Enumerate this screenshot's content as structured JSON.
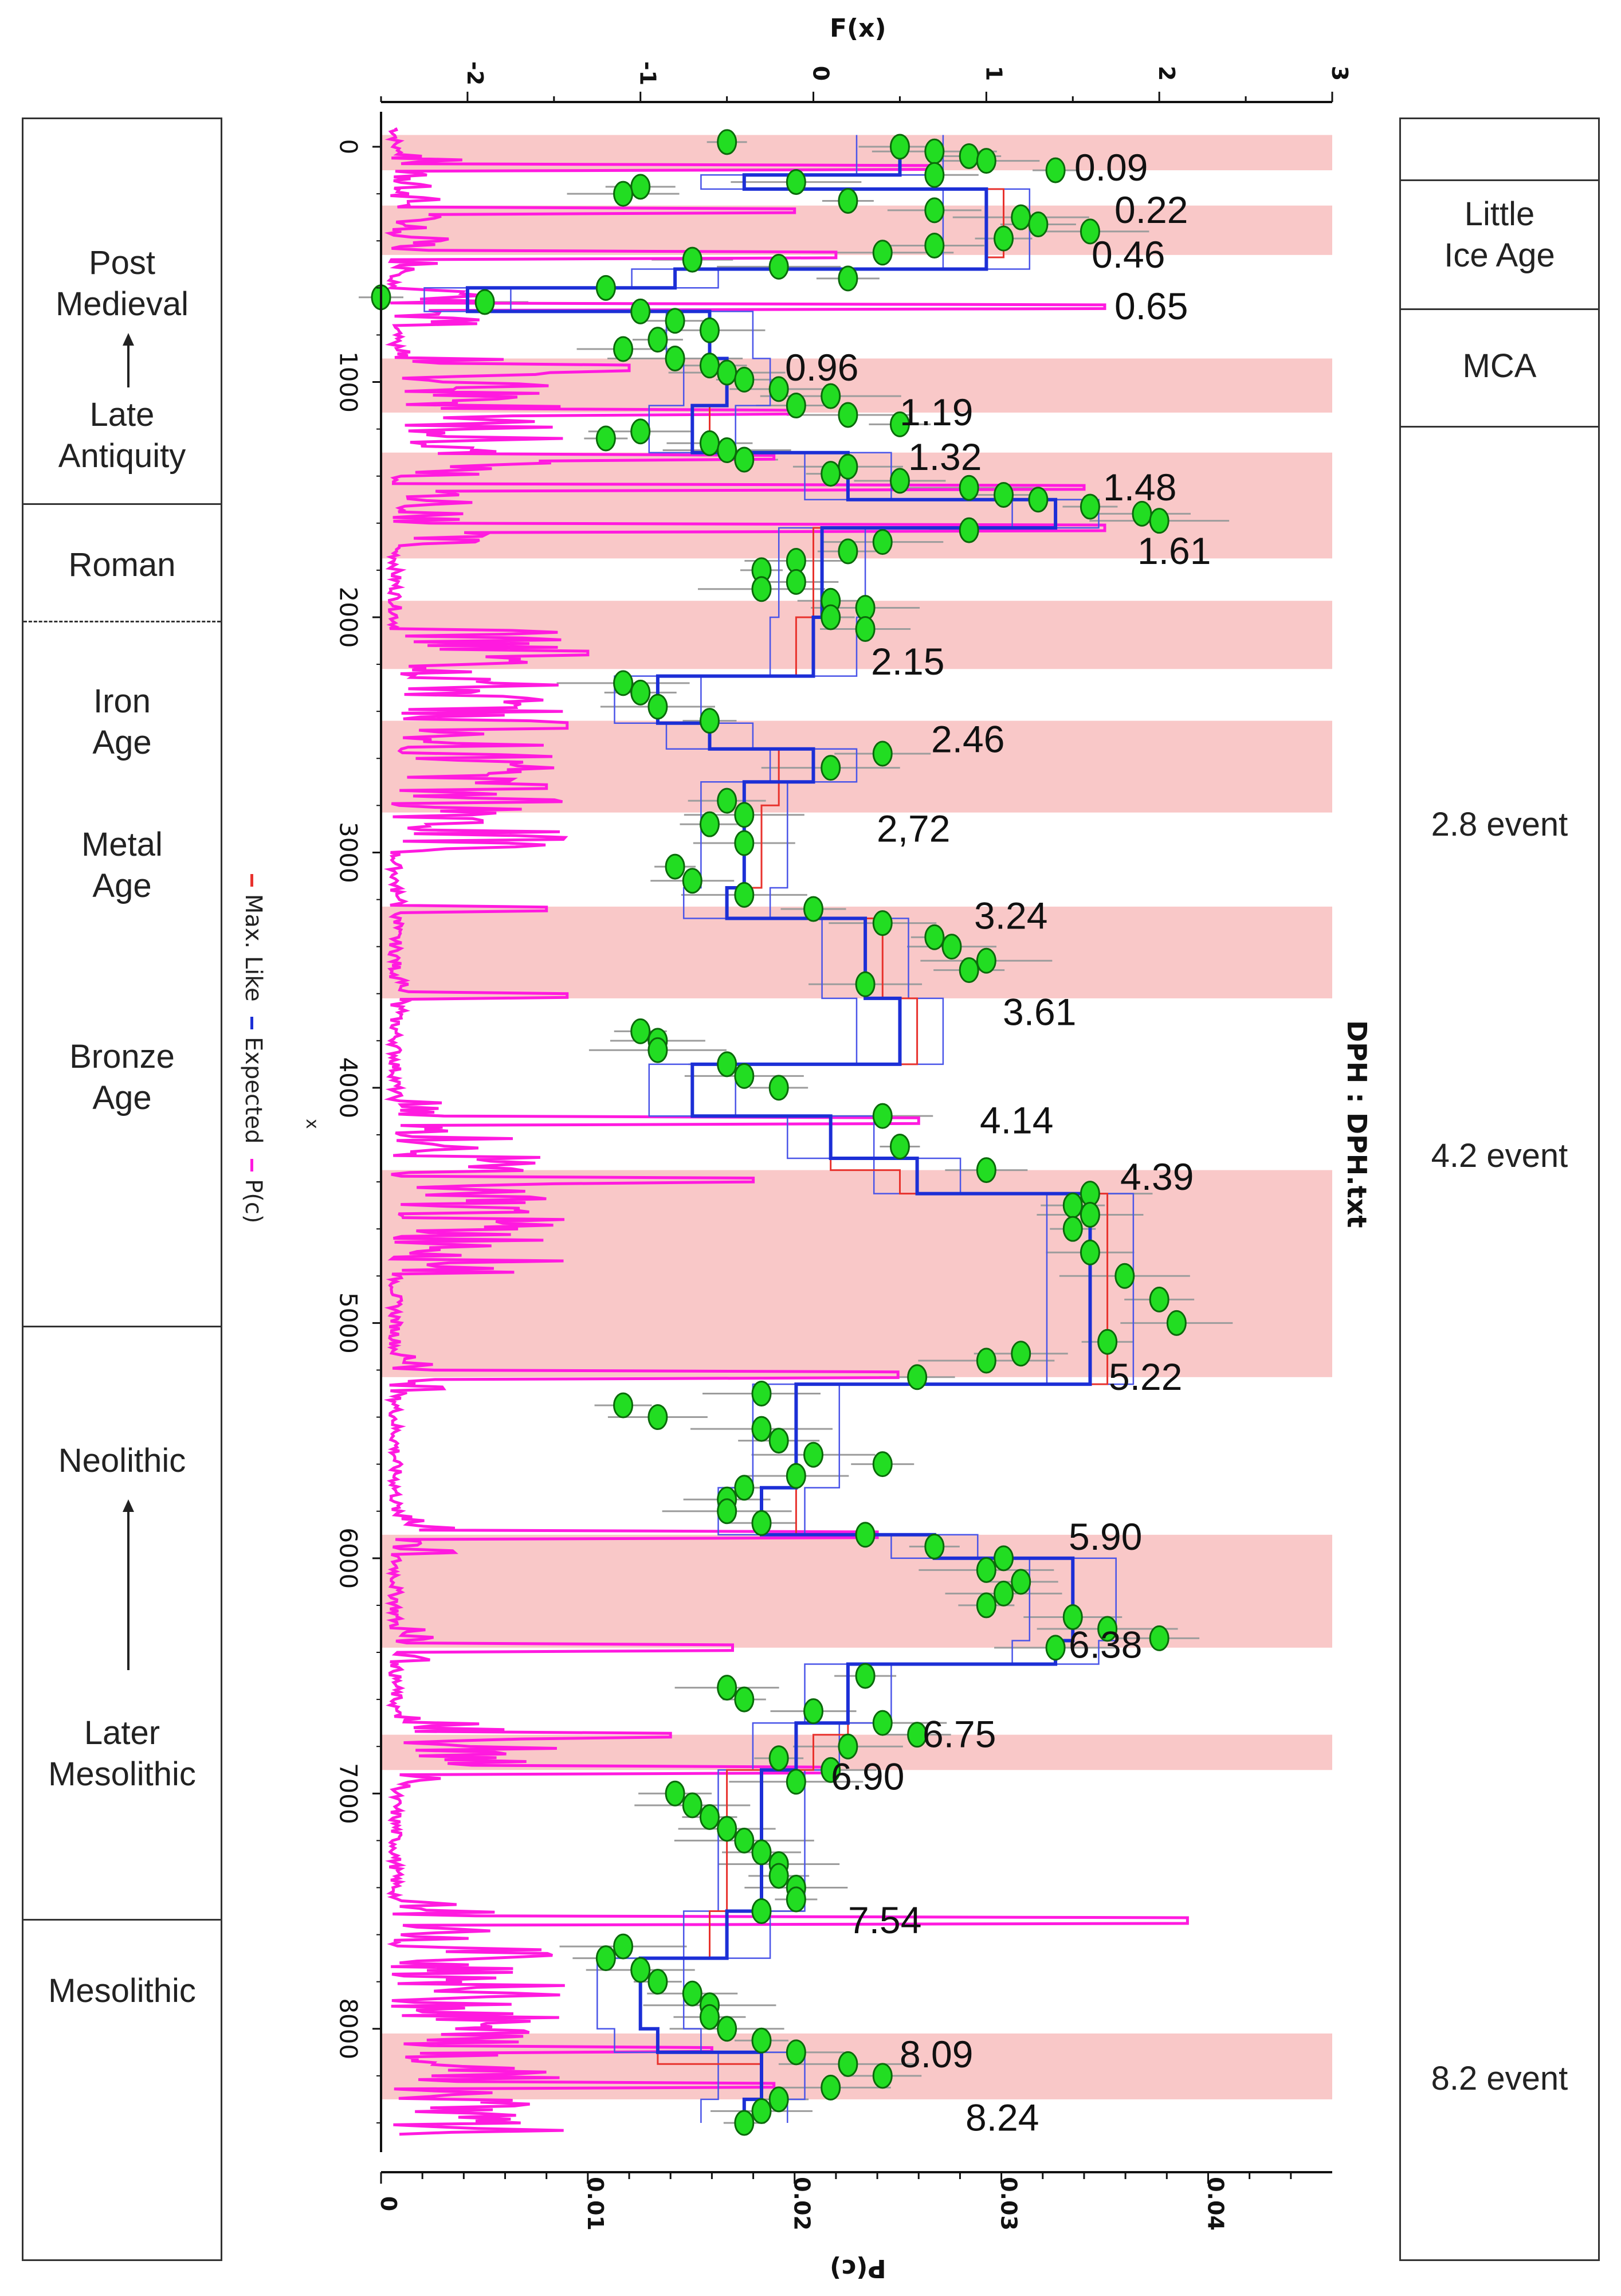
{
  "chart_data": {
    "type": "line",
    "title": "DPH : DPH.txt",
    "top_axis": {
      "label": "F(x)",
      "range": [
        -2.5,
        3
      ],
      "ticks": [
        "-2",
        "-1",
        "0",
        "1",
        "2",
        "3"
      ]
    },
    "bottom_axis": {
      "label": "P(c)",
      "range": [
        0,
        0.046
      ],
      "ticks": [
        "0",
        "0.01",
        "0.02",
        "0.03",
        "0.04"
      ]
    },
    "depth_axis": {
      "label": "x",
      "range": [
        -100,
        8500
      ],
      "ticks": [
        "0",
        "1000",
        "2000",
        "3000",
        "4000",
        "5000",
        "6000",
        "7000",
        "8000"
      ]
    },
    "legend": [
      {
        "name": "Max. Like",
        "color": "#e8322d"
      },
      {
        "name": "Expected",
        "color": "#1c2fd6"
      },
      {
        "name": "P(c)",
        "color": "#ff1adf"
      }
    ],
    "shaded_bands": [
      {
        "start": -50,
        "end": 100
      },
      {
        "start": 250,
        "end": 460
      },
      {
        "start": 900,
        "end": 1130
      },
      {
        "start": 1300,
        "end": 1750
      },
      {
        "start": 1930,
        "end": 2220
      },
      {
        "start": 2440,
        "end": 2830
      },
      {
        "start": 3230,
        "end": 3620
      },
      {
        "start": 4350,
        "end": 5230
      },
      {
        "start": 5900,
        "end": 6380
      },
      {
        "start": 6750,
        "end": 6900
      },
      {
        "start": 8020,
        "end": 8300
      }
    ],
    "breakpoints": [
      {
        "label": "0.09",
        "depth": 90
      },
      {
        "label": "0.22",
        "depth": 270
      },
      {
        "label": "0.46",
        "depth": 460
      },
      {
        "label": "0.65",
        "depth": 680
      },
      {
        "label": "0.96",
        "depth": 940
      },
      {
        "label": "1.19",
        "depth": 1130
      },
      {
        "label": "1.32",
        "depth": 1320
      },
      {
        "label": "1.48",
        "depth": 1450
      },
      {
        "label": "1.61",
        "depth": 1720
      },
      {
        "label": "2.15",
        "depth": 2190
      },
      {
        "label": "2.46",
        "depth": 2520
      },
      {
        "label": "2,72",
        "depth": 2900
      },
      {
        "label": "3.24",
        "depth": 3270
      },
      {
        "label": "3.61",
        "depth": 3680
      },
      {
        "label": "4.14",
        "depth": 4140
      },
      {
        "label": "4.39",
        "depth": 4380
      },
      {
        "label": "5.22",
        "depth": 5230
      },
      {
        "label": "5.90",
        "depth": 5910
      },
      {
        "label": "6.38",
        "depth": 6370
      },
      {
        "label": "6.75",
        "depth": 6750
      },
      {
        "label": "6.90",
        "depth": 6930
      },
      {
        "label": "7.54",
        "depth": 7540
      },
      {
        "label": "8.09",
        "depth": 8110
      },
      {
        "label": "8.24",
        "depth": 8380
      }
    ],
    "expected_steps": [
      [
        -50,
        0.5
      ],
      [
        120,
        -0.4
      ],
      [
        180,
        1.0
      ],
      [
        470,
        1.0
      ],
      [
        520,
        -0.8
      ],
      [
        600,
        -2.0
      ],
      [
        700,
        -0.6
      ],
      [
        900,
        -0.5
      ],
      [
        1100,
        -0.7
      ],
      [
        1300,
        0.2
      ],
      [
        1500,
        1.4
      ],
      [
        1620,
        0.05
      ],
      [
        2000,
        0.0
      ],
      [
        2250,
        -0.9
      ],
      [
        2450,
        -0.6
      ],
      [
        2560,
        0.0
      ],
      [
        2700,
        -0.4
      ],
      [
        3150,
        -0.5
      ],
      [
        3280,
        0.3
      ],
      [
        3620,
        0.5
      ],
      [
        3900,
        -0.7
      ],
      [
        4120,
        0.1
      ],
      [
        4300,
        0.6
      ],
      [
        4450,
        1.6
      ],
      [
        5200,
        1.6
      ],
      [
        5260,
        -0.1
      ],
      [
        5700,
        -0.3
      ],
      [
        5900,
        0.7
      ],
      [
        6000,
        1.5
      ],
      [
        6350,
        1.4
      ],
      [
        6450,
        0.2
      ],
      [
        6700,
        -0.1
      ],
      [
        6900,
        -0.3
      ],
      [
        7500,
        -0.5
      ],
      [
        7700,
        -1.0
      ],
      [
        8000,
        -0.9
      ],
      [
        8100,
        -0.3
      ],
      [
        8300,
        -0.4
      ]
    ],
    "maxlike_steps": [
      [
        -50,
        0.5
      ],
      [
        120,
        -0.4
      ],
      [
        180,
        1.1
      ],
      [
        470,
        1.0
      ],
      [
        520,
        -0.8
      ],
      [
        600,
        -1.9
      ],
      [
        700,
        -0.6
      ],
      [
        900,
        -0.5
      ],
      [
        1100,
        -0.6
      ],
      [
        1300,
        0.2
      ],
      [
        1500,
        1.4
      ],
      [
        1620,
        0.0
      ],
      [
        2000,
        -0.1
      ],
      [
        2250,
        -0.9
      ],
      [
        2450,
        -0.6
      ],
      [
        2560,
        -0.2
      ],
      [
        2800,
        -0.3
      ],
      [
        3150,
        -0.5
      ],
      [
        3280,
        0.4
      ],
      [
        3620,
        0.6
      ],
      [
        3900,
        -0.7
      ],
      [
        4120,
        0.1
      ],
      [
        4350,
        0.5
      ],
      [
        4450,
        1.7
      ],
      [
        5200,
        1.7
      ],
      [
        5260,
        -0.1
      ],
      [
        5900,
        0.7
      ],
      [
        6000,
        1.5
      ],
      [
        6350,
        1.4
      ],
      [
        6450,
        0.2
      ],
      [
        6750,
        0.0
      ],
      [
        6900,
        -0.5
      ],
      [
        7500,
        -0.6
      ],
      [
        7700,
        -1.0
      ],
      [
        8000,
        -0.9
      ],
      [
        8150,
        -0.3
      ],
      [
        8300,
        -0.3
      ]
    ],
    "pc_peaks": [
      {
        "depth": 90,
        "value": 0.027
      },
      {
        "depth": 270,
        "value": 0.02
      },
      {
        "depth": 460,
        "value": 0.022
      },
      {
        "depth": 680,
        "value": 0.035
      },
      {
        "depth": 940,
        "value": 0.012
      },
      {
        "depth": 1130,
        "value": 0.02
      },
      {
        "depth": 1320,
        "value": 0.019
      },
      {
        "depth": 1450,
        "value": 0.034
      },
      {
        "depth": 1620,
        "value": 0.035
      },
      {
        "depth": 2150,
        "value": 0.01
      },
      {
        "depth": 2460,
        "value": 0.009
      },
      {
        "depth": 2720,
        "value": 0.008
      },
      {
        "depth": 3240,
        "value": 0.008
      },
      {
        "depth": 3610,
        "value": 0.009
      },
      {
        "depth": 4140,
        "value": 0.026
      },
      {
        "depth": 4390,
        "value": 0.018
      },
      {
        "depth": 5220,
        "value": 0.025
      },
      {
        "depth": 5900,
        "value": 0.024
      },
      {
        "depth": 6380,
        "value": 0.017
      },
      {
        "depth": 6750,
        "value": 0.014
      },
      {
        "depth": 6900,
        "value": 0.022
      },
      {
        "depth": 7540,
        "value": 0.039
      },
      {
        "depth": 8090,
        "value": 0.016
      },
      {
        "depth": 8240,
        "value": 0.019
      }
    ],
    "data_points": [
      [
        -20,
        -0.5
      ],
      [
        0,
        0.5
      ],
      [
        20,
        0.7
      ],
      [
        40,
        0.9
      ],
      [
        60,
        1.0
      ],
      [
        100,
        1.4
      ],
      [
        120,
        0.7
      ],
      [
        150,
        -0.1
      ],
      [
        170,
        -1.0
      ],
      [
        200,
        -1.1
      ],
      [
        230,
        0.2
      ],
      [
        270,
        0.7
      ],
      [
        300,
        1.2
      ],
      [
        330,
        1.3
      ],
      [
        360,
        1.6
      ],
      [
        390,
        1.1
      ],
      [
        420,
        0.7
      ],
      [
        450,
        0.4
      ],
      [
        480,
        -0.7
      ],
      [
        510,
        -0.2
      ],
      [
        560,
        0.2
      ],
      [
        600,
        -1.2
      ],
      [
        640,
        -2.5
      ],
      [
        660,
        -1.9
      ],
      [
        700,
        -1.0
      ],
      [
        740,
        -0.8
      ],
      [
        780,
        -0.6
      ],
      [
        820,
        -0.9
      ],
      [
        860,
        -1.1
      ],
      [
        900,
        -0.8
      ],
      [
        930,
        -0.6
      ],
      [
        960,
        -0.5
      ],
      [
        990,
        -0.4
      ],
      [
        1030,
        -0.2
      ],
      [
        1060,
        0.1
      ],
      [
        1100,
        -0.1
      ],
      [
        1140,
        0.2
      ],
      [
        1180,
        0.5
      ],
      [
        1210,
        -1.0
      ],
      [
        1240,
        -1.2
      ],
      [
        1260,
        -0.6
      ],
      [
        1290,
        -0.5
      ],
      [
        1330,
        -0.4
      ],
      [
        1360,
        0.2
      ],
      [
        1390,
        0.1
      ],
      [
        1420,
        0.5
      ],
      [
        1450,
        0.9
      ],
      [
        1480,
        1.1
      ],
      [
        1500,
        1.3
      ],
      [
        1530,
        1.6
      ],
      [
        1560,
        1.9
      ],
      [
        1590,
        2.0
      ],
      [
        1630,
        0.9
      ],
      [
        1680,
        0.4
      ],
      [
        1720,
        0.2
      ],
      [
        1760,
        -0.1
      ],
      [
        1800,
        -0.3
      ],
      [
        1850,
        -0.1
      ],
      [
        1880,
        -0.3
      ],
      [
        1930,
        0.1
      ],
      [
        1960,
        0.3
      ],
      [
        2000,
        0.1
      ],
      [
        2050,
        0.3
      ],
      [
        2280,
        -1.1
      ],
      [
        2320,
        -1.0
      ],
      [
        2380,
        -0.9
      ],
      [
        2440,
        -0.6
      ],
      [
        2580,
        0.4
      ],
      [
        2640,
        0.1
      ],
      [
        2780,
        -0.5
      ],
      [
        2840,
        -0.4
      ],
      [
        2880,
        -0.6
      ],
      [
        2960,
        -0.4
      ],
      [
        3060,
        -0.8
      ],
      [
        3120,
        -0.7
      ],
      [
        3180,
        -0.4
      ],
      [
        3240,
        0.0
      ],
      [
        3300,
        0.4
      ],
      [
        3360,
        0.7
      ],
      [
        3400,
        0.8
      ],
      [
        3460,
        1.0
      ],
      [
        3500,
        0.9
      ],
      [
        3560,
        0.3
      ],
      [
        3760,
        -1.0
      ],
      [
        3800,
        -0.9
      ],
      [
        3840,
        -0.9
      ],
      [
        3900,
        -0.5
      ],
      [
        3950,
        -0.4
      ],
      [
        4000,
        -0.2
      ],
      [
        4120,
        0.4
      ],
      [
        4250,
        0.5
      ],
      [
        4350,
        1.0
      ],
      [
        4450,
        1.6
      ],
      [
        4500,
        1.5
      ],
      [
        4540,
        1.6
      ],
      [
        4600,
        1.5
      ],
      [
        4700,
        1.6
      ],
      [
        4800,
        1.8
      ],
      [
        4900,
        2.0
      ],
      [
        5000,
        2.1
      ],
      [
        5080,
        1.7
      ],
      [
        5130,
        1.2
      ],
      [
        5160,
        1.0
      ],
      [
        5230,
        0.6
      ],
      [
        5300,
        -0.3
      ],
      [
        5350,
        -1.1
      ],
      [
        5400,
        -0.9
      ],
      [
        5450,
        -0.3
      ],
      [
        5500,
        -0.2
      ],
      [
        5560,
        0.0
      ],
      [
        5600,
        0.4
      ],
      [
        5650,
        -0.1
      ],
      [
        5700,
        -0.4
      ],
      [
        5750,
        -0.5
      ],
      [
        5800,
        -0.5
      ],
      [
        5850,
        -0.3
      ],
      [
        5900,
        0.3
      ],
      [
        5950,
        0.7
      ],
      [
        6000,
        1.1
      ],
      [
        6050,
        1.0
      ],
      [
        6100,
        1.2
      ],
      [
        6150,
        1.1
      ],
      [
        6200,
        1.0
      ],
      [
        6250,
        1.5
      ],
      [
        6300,
        1.7
      ],
      [
        6340,
        2.0
      ],
      [
        6380,
        1.4
      ],
      [
        6500,
        0.3
      ],
      [
        6550,
        -0.5
      ],
      [
        6600,
        -0.4
      ],
      [
        6650,
        0.0
      ],
      [
        6700,
        0.4
      ],
      [
        6750,
        0.6
      ],
      [
        6800,
        0.2
      ],
      [
        6850,
        -0.2
      ],
      [
        6900,
        0.1
      ],
      [
        6950,
        -0.1
      ],
      [
        7000,
        -0.8
      ],
      [
        7050,
        -0.7
      ],
      [
        7100,
        -0.6
      ],
      [
        7150,
        -0.5
      ],
      [
        7200,
        -0.4
      ],
      [
        7250,
        -0.3
      ],
      [
        7300,
        -0.2
      ],
      [
        7350,
        -0.2
      ],
      [
        7400,
        -0.1
      ],
      [
        7450,
        -0.1
      ],
      [
        7500,
        -0.3
      ],
      [
        7650,
        -1.1
      ],
      [
        7700,
        -1.2
      ],
      [
        7750,
        -1.0
      ],
      [
        7800,
        -0.9
      ],
      [
        7850,
        -0.7
      ],
      [
        7900,
        -0.6
      ],
      [
        7950,
        -0.6
      ],
      [
        8000,
        -0.5
      ],
      [
        8050,
        -0.3
      ],
      [
        8100,
        -0.1
      ],
      [
        8150,
        0.2
      ],
      [
        8200,
        0.4
      ],
      [
        8250,
        0.1
      ],
      [
        8300,
        -0.2
      ],
      [
        8350,
        -0.3
      ],
      [
        8400,
        -0.4
      ]
    ]
  },
  "left_panel": {
    "post_medieval": "Post\nMedieval",
    "late_antiquity": "Late\nAntiquity",
    "roman": "Roman",
    "iron_age": "Iron\nAge",
    "metal_age": "Metal\nAge",
    "bronze_age": "Bronze\nAge",
    "neolithic": "Neolithic",
    "later_mesolithic": "Later\nMesolithic",
    "mesolithic": "Mesolithic"
  },
  "right_panel": {
    "little_ice_age": "Little\nIce Age",
    "mca": "MCA",
    "event_2_8": "2.8 event",
    "event_4_2": "4.2 event",
    "event_8_2": "8.2 event"
  },
  "legend_text": {
    "max_like": "Max. Like",
    "expected": "Expected",
    "pc": "P(c)",
    "x_label": "x"
  },
  "colors": {
    "band": "#f9c8c8",
    "pc_line": "#ff1adf",
    "expected_line": "#1c2fd6",
    "maxlike_line": "#e8322d",
    "point_fill": "#22dd22",
    "point_stroke": "#0a6a0a",
    "errorbar": "#9c9c9c"
  }
}
